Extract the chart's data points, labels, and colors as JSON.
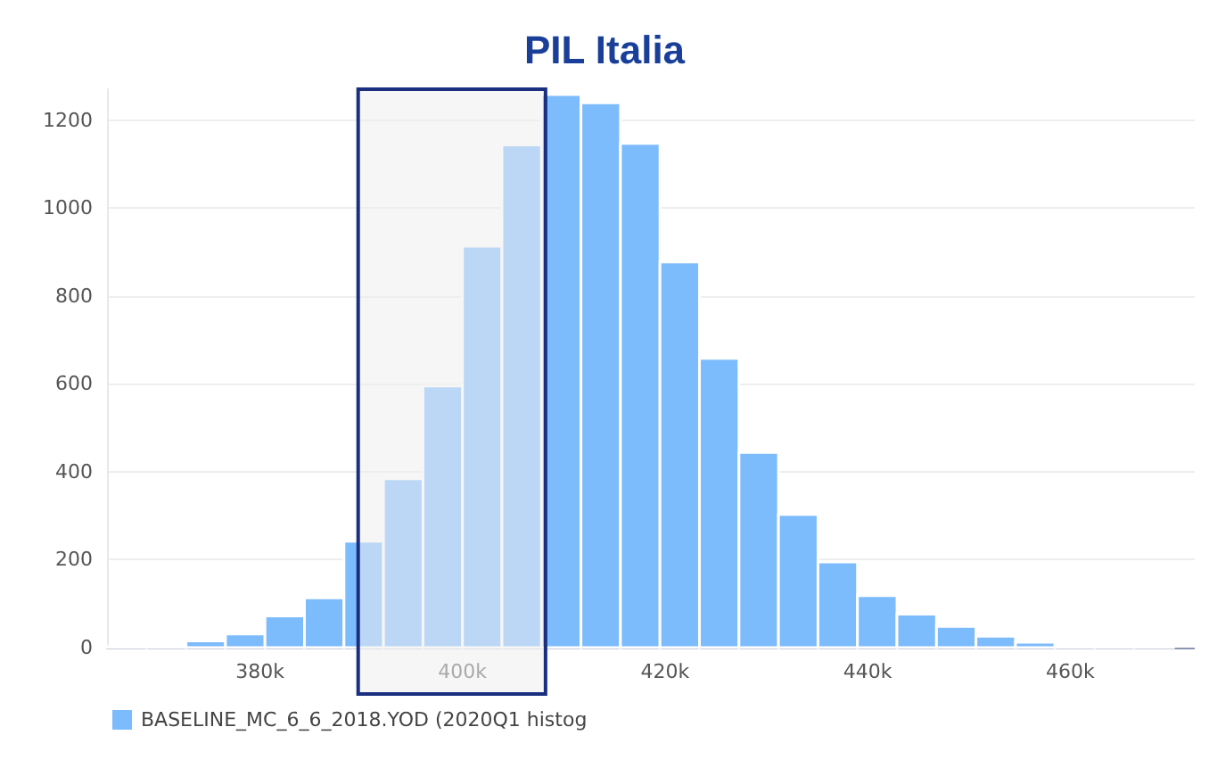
{
  "chart_data": {
    "type": "histogram",
    "title": "PIL Italia",
    "bins": [
      364900,
      368800,
      372700,
      376600,
      380500,
      384400,
      388300,
      392200,
      396100,
      400000,
      403900,
      407800,
      411700,
      415600,
      419500,
      423400,
      427300,
      431200,
      435100,
      439000,
      442900,
      446800,
      450700,
      454600,
      458500,
      462400,
      466300,
      470200
    ],
    "series": [
      {
        "name": "BASELINE_MC_6_6_2018.YOD (2020Q1 histog",
        "color": "#7cbbfc",
        "values": [
          2,
          1,
          15,
          31,
          72,
          113,
          242,
          384,
          595,
          913,
          1143,
          1258,
          1239,
          1147,
          877,
          658,
          444,
          303,
          195,
          118,
          76,
          48,
          26,
          12,
          5,
          6,
          3
        ]
      }
    ],
    "xlim": [
      364900,
      472300
    ],
    "xticks": [
      {
        "value": 380000,
        "label": "380k"
      },
      {
        "value": 400000,
        "label": "400k"
      },
      {
        "value": 420000,
        "label": "420k"
      },
      {
        "value": 440000,
        "label": "440k"
      },
      {
        "value": 460000,
        "label": "460k"
      }
    ],
    "ylim": [
      0,
      1270
    ],
    "yticks": [
      0,
      200,
      400,
      600,
      800,
      1000,
      1200
    ],
    "grid": "y",
    "legend": "bottom left",
    "bands": [
      {
        "axis": "x",
        "from": 389700,
        "to": 408200,
        "color": "#1a2f80"
      }
    ]
  }
}
